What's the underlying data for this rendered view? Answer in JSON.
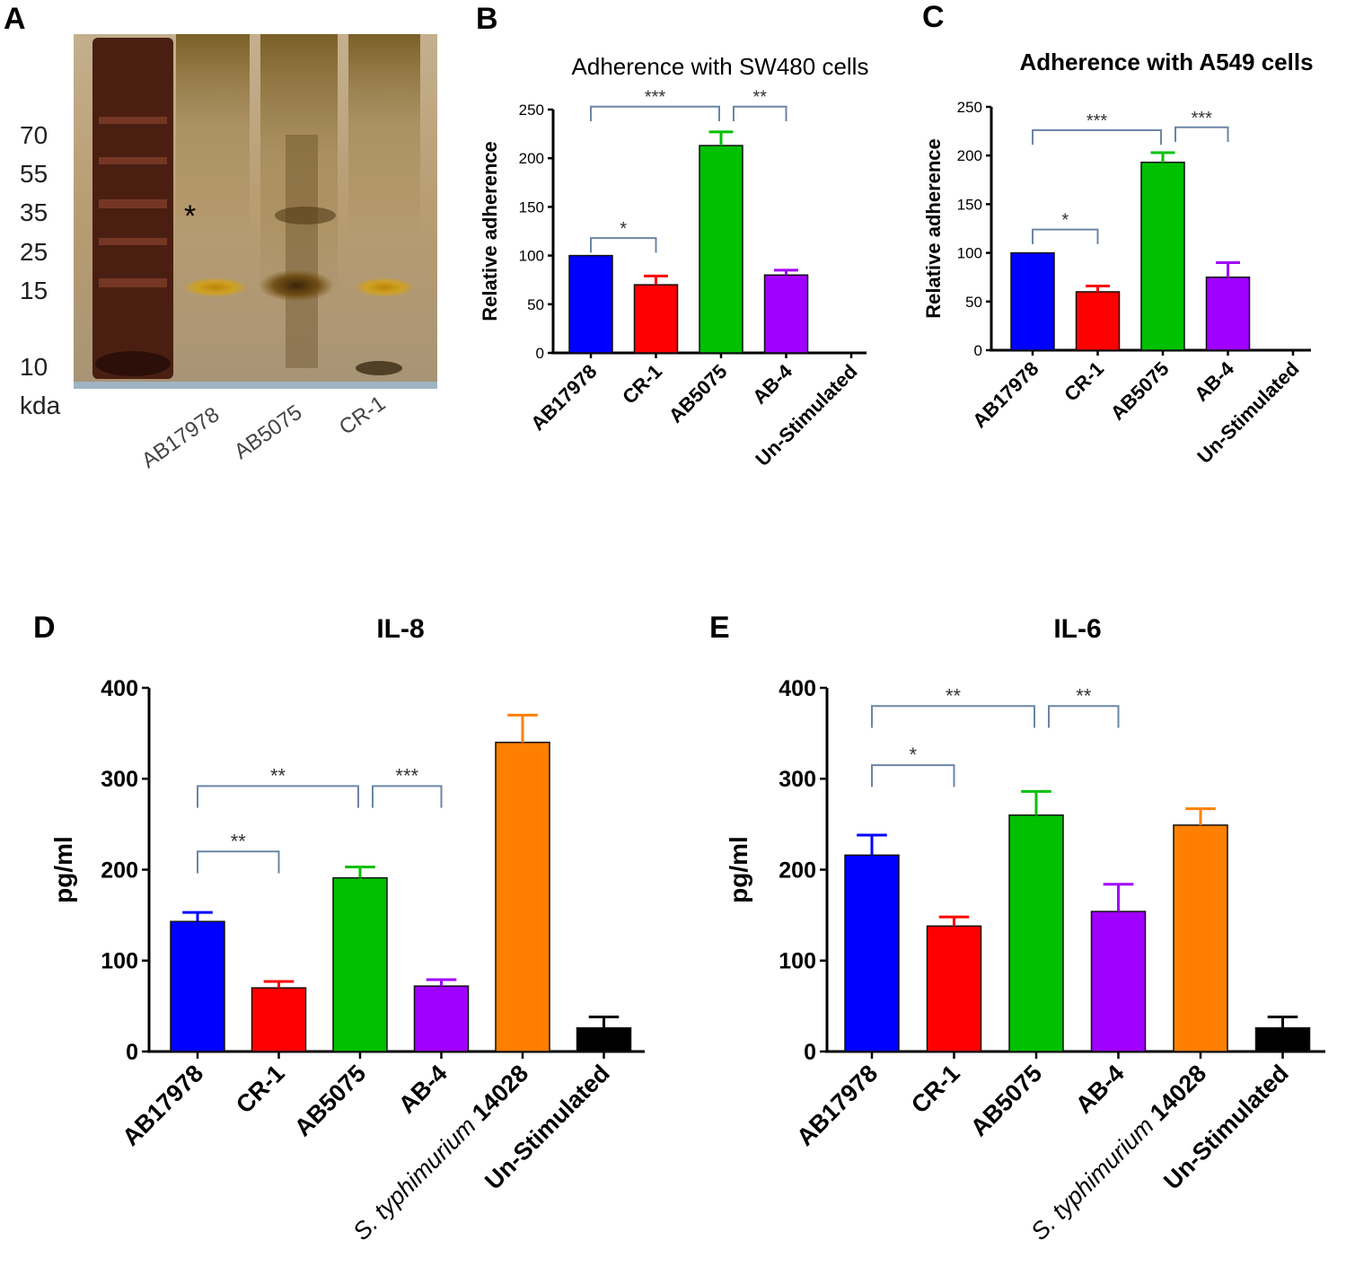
{
  "figure": {
    "panel_labels": [
      "A",
      "B",
      "C",
      "D",
      "E"
    ]
  },
  "gel": {
    "markers": [
      "70",
      "55",
      "35",
      "25",
      "15",
      "10"
    ],
    "unit": "kda",
    "asterisk": "*",
    "lanes": [
      "AB17978",
      "AB5075",
      "CR-1"
    ],
    "colors": {
      "background": "#b9a17c",
      "ladder": "#4a1f12",
      "band": "#c79a12"
    }
  },
  "chart_data": [
    {
      "panel": "B",
      "type": "bar",
      "title": "Adherence with SW480 cells",
      "xlabel": "",
      "ylabel": "Relative adherence",
      "ylim": [
        0,
        250
      ],
      "yticks": [
        "0",
        "50",
        "100",
        "150",
        "200",
        "250"
      ],
      "categories": [
        "AB17978",
        "CR-1",
        "AB5075",
        "AB-4",
        "Un-Stimulated"
      ],
      "values": [
        100,
        70,
        213,
        80,
        0
      ],
      "errors": [
        0,
        9,
        14,
        5,
        0
      ],
      "colors": [
        "#0000ff",
        "#ff0000",
        "#00c000",
        "#a000ff",
        "#000000"
      ],
      "significance": [
        {
          "from": 0,
          "to": 1,
          "label": "*",
          "at": 118
        },
        {
          "from": 0,
          "to": 2,
          "label": "***",
          "at": 253
        },
        {
          "from": 2,
          "to": 3,
          "label": "**",
          "at": 253
        }
      ]
    },
    {
      "panel": "C",
      "type": "bar",
      "title": "Adherence with A549 cells",
      "xlabel": "",
      "ylabel": "Relative adherence",
      "ylim": [
        0,
        250
      ],
      "yticks": [
        "0",
        "50",
        "100",
        "150",
        "200",
        "250"
      ],
      "categories": [
        "AB17978",
        "CR-1",
        "AB5075",
        "AB-4",
        "Un-Stimulated"
      ],
      "values": [
        100,
        60,
        193,
        75,
        0
      ],
      "errors": [
        0,
        6,
        10,
        15,
        0
      ],
      "colors": [
        "#0000ff",
        "#ff0000",
        "#00c000",
        "#a000ff",
        "#000000"
      ],
      "significance": [
        {
          "from": 0,
          "to": 1,
          "label": "*",
          "at": 124
        },
        {
          "from": 0,
          "to": 2,
          "label": "***",
          "at": 226
        },
        {
          "from": 2,
          "to": 3,
          "label": "***",
          "at": 229
        }
      ]
    },
    {
      "panel": "D",
      "type": "bar",
      "title": "IL-8",
      "xlabel": "",
      "ylabel": "pg/ml",
      "ylim": [
        0,
        400
      ],
      "yticks": [
        "0",
        "100",
        "200",
        "300",
        "400"
      ],
      "categories": [
        "AB17978",
        "CR-1",
        "AB5075",
        "AB-4",
        "S. typhimurium 14028",
        "Un-Stimulated"
      ],
      "values": [
        143,
        70,
        191,
        72,
        340,
        26
      ],
      "errors": [
        10,
        7,
        12,
        7,
        30,
        12
      ],
      "colors": [
        "#0000ff",
        "#ff0000",
        "#00c000",
        "#a000ff",
        "#ff8000",
        "#000000"
      ],
      "significance": [
        {
          "from": 0,
          "to": 1,
          "label": "**",
          "at": 220
        },
        {
          "from": 0,
          "to": 2,
          "label": "**",
          "at": 292
        },
        {
          "from": 2,
          "to": 3,
          "label": "***",
          "at": 292
        }
      ]
    },
    {
      "panel": "E",
      "type": "bar",
      "title": "IL-6",
      "xlabel": "",
      "ylabel": "pg/ml",
      "ylim": [
        0,
        400
      ],
      "yticks": [
        "0",
        "100",
        "200",
        "300",
        "400"
      ],
      "categories": [
        "AB17978",
        "CR-1",
        "AB5075",
        "AB-4",
        "S. typhimurium 14028",
        "Un-Stimulated"
      ],
      "values": [
        216,
        138,
        260,
        154,
        249,
        26
      ],
      "errors": [
        22,
        10,
        26,
        30,
        18,
        12
      ],
      "colors": [
        "#0000ff",
        "#ff0000",
        "#00c000",
        "#a000ff",
        "#ff8000",
        "#000000"
      ],
      "significance": [
        {
          "from": 0,
          "to": 1,
          "label": "*",
          "at": 315
        },
        {
          "from": 0,
          "to": 2,
          "label": "**",
          "at": 380
        },
        {
          "from": 2,
          "to": 3,
          "label": "**",
          "at": 380
        }
      ]
    }
  ]
}
